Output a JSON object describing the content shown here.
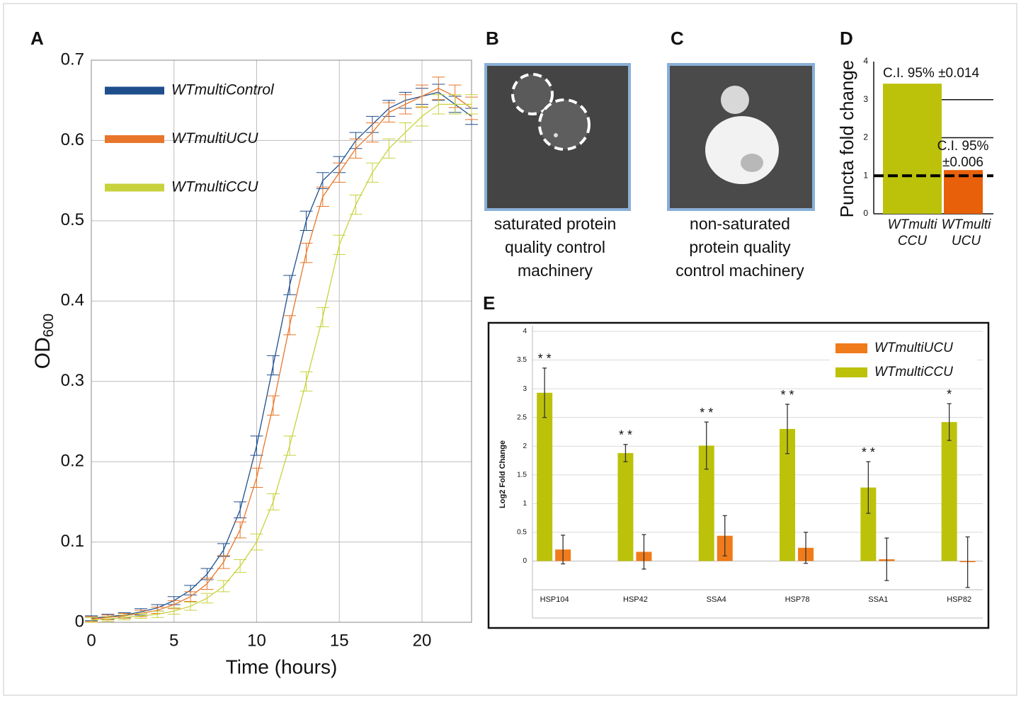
{
  "chart_data": [
    {
      "type": "line",
      "panel": "A",
      "xlabel": "Time (hours)",
      "ylabel": "OD",
      "ylabel_sub": "600",
      "xlim": [
        0,
        23
      ],
      "ylim": [
        0,
        0.7
      ],
      "xticks": [
        0,
        5,
        10,
        15,
        20
      ],
      "yticks": [
        0,
        0.1,
        0.2,
        0.3,
        0.4,
        0.5,
        0.6,
        0.7
      ],
      "grid": true,
      "x": [
        0,
        1,
        2,
        3,
        4,
        5,
        6,
        7,
        8,
        9,
        10,
        11,
        12,
        13,
        14,
        15,
        16,
        17,
        18,
        19,
        20,
        21,
        22,
        23
      ],
      "series": [
        {
          "name": "WTmultiControl",
          "color": "#1f4e8c",
          "values": [
            0.005,
            0.007,
            0.009,
            0.013,
            0.018,
            0.027,
            0.04,
            0.06,
            0.09,
            0.14,
            0.22,
            0.32,
            0.42,
            0.5,
            0.55,
            0.57,
            0.6,
            0.62,
            0.64,
            0.65,
            0.655,
            0.66,
            0.645,
            0.63
          ],
          "errors": [
            0.003,
            0.003,
            0.003,
            0.004,
            0.004,
            0.005,
            0.006,
            0.007,
            0.008,
            0.01,
            0.012,
            0.012,
            0.012,
            0.012,
            0.01,
            0.01,
            0.01,
            0.01,
            0.01,
            0.01,
            0.01,
            0.01,
            0.01,
            0.01
          ]
        },
        {
          "name": "WTmultiUCU",
          "color": "#e8762a",
          "values": [
            0.004,
            0.006,
            0.008,
            0.011,
            0.015,
            0.022,
            0.032,
            0.048,
            0.075,
            0.115,
            0.18,
            0.27,
            0.37,
            0.46,
            0.53,
            0.56,
            0.59,
            0.61,
            0.635,
            0.645,
            0.655,
            0.665,
            0.655,
            0.64
          ],
          "errors": [
            0.003,
            0.003,
            0.003,
            0.004,
            0.004,
            0.005,
            0.006,
            0.007,
            0.008,
            0.01,
            0.012,
            0.012,
            0.012,
            0.012,
            0.012,
            0.012,
            0.012,
            0.012,
            0.012,
            0.012,
            0.014,
            0.014,
            0.014,
            0.014
          ]
        },
        {
          "name": "WTmultiCCU",
          "color": "#c8d23c",
          "values": [
            0.003,
            0.004,
            0.006,
            0.008,
            0.01,
            0.014,
            0.02,
            0.03,
            0.045,
            0.07,
            0.1,
            0.15,
            0.22,
            0.3,
            0.38,
            0.47,
            0.52,
            0.56,
            0.59,
            0.61,
            0.63,
            0.645,
            0.645,
            0.645
          ],
          "errors": [
            0.003,
            0.003,
            0.003,
            0.003,
            0.004,
            0.004,
            0.005,
            0.006,
            0.007,
            0.008,
            0.01,
            0.01,
            0.012,
            0.012,
            0.012,
            0.012,
            0.012,
            0.012,
            0.012,
            0.012,
            0.012,
            0.012,
            0.012,
            0.012
          ]
        }
      ]
    },
    {
      "type": "bar",
      "panel": "D",
      "ylabel": "Puncta fold change",
      "ylim": [
        0,
        4
      ],
      "yticks": [
        0,
        1,
        2,
        3,
        4
      ],
      "grid": true,
      "categories": [
        [
          "WTmulti",
          "CCU"
        ],
        [
          "WTmulti",
          "UCU"
        ]
      ],
      "series": [
        {
          "values": [
            3.42,
            1.15
          ],
          "colors": [
            "#bcc20a",
            "#e8600a"
          ]
        }
      ],
      "reference_line": 1,
      "annotations": [
        [
          "C.I. 95% ±0.014"
        ],
        [
          "C.I. 95%",
          "±0.006"
        ]
      ]
    },
    {
      "type": "bar",
      "panel": "E",
      "ylabel": "Log2 Fold Change",
      "ylim": [
        -0.5,
        4
      ],
      "yticks": [
        0,
        0.5,
        1,
        1.5,
        2,
        2.5,
        3,
        3.5,
        4
      ],
      "grid": true,
      "categories": [
        "HSP104",
        "HSP42",
        "SSA4",
        "HSP78",
        "SSA1",
        "HSP82"
      ],
      "series": [
        {
          "name": "WTmultiUCU",
          "color": "#f07b1a",
          "values": [
            0.2,
            0.16,
            0.44,
            0.23,
            0.03,
            -0.02
          ],
          "errors": [
            0.25,
            0.3,
            0.35,
            0.27,
            0.37,
            0.44
          ]
        },
        {
          "name": "WTmultiCCU",
          "color": "#bcc20a",
          "values": [
            2.93,
            1.88,
            2.01,
            2.3,
            1.28,
            2.42
          ],
          "errors": [
            0.43,
            0.15,
            0.41,
            0.43,
            0.45,
            0.32
          ]
        }
      ],
      "significance": [
        "* *",
        "* *",
        "* *",
        "* *",
        "* *",
        "*"
      ]
    }
  ],
  "images": [
    {
      "panel": "B",
      "caption": [
        "saturated protein",
        "quality control",
        "machinery"
      ]
    },
    {
      "panel": "C",
      "caption": [
        "non-saturated",
        "protein quality",
        "control machinery"
      ]
    }
  ]
}
